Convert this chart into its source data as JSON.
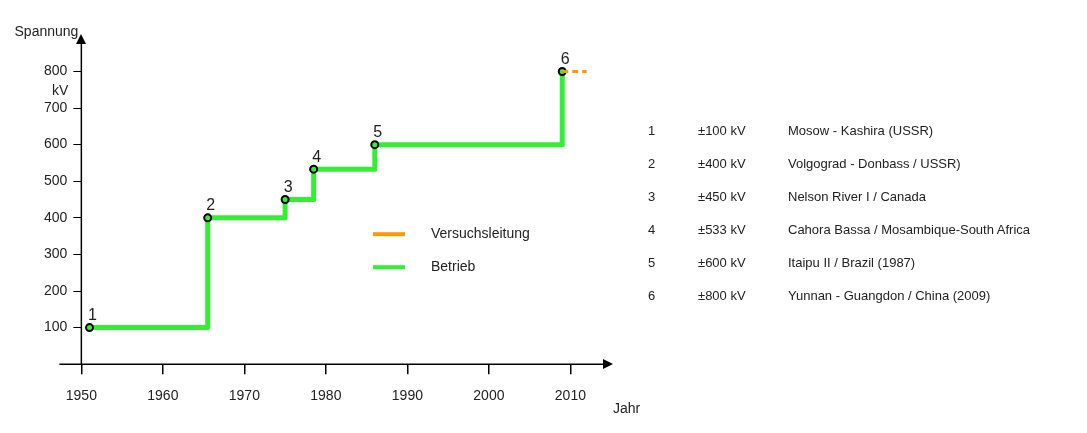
{
  "chart_data": {
    "type": "step",
    "xlabel": "Jahr",
    "ylabel": "Spannung",
    "xlim": [
      1950,
      2014
    ],
    "xticks": [
      1950,
      1960,
      1970,
      1980,
      1990,
      2000,
      2010
    ],
    "ylim": [
      0,
      875
    ],
    "yticks": [
      100,
      200,
      300,
      400,
      500,
      600,
      700,
      800
    ],
    "grid": false,
    "legend": "bottom right",
    "marker": "circle",
    "series": [
      {
        "name": "Versuchsleitung",
        "color": "#ff9900",
        "line_style": "dashed",
        "marker": "none",
        "x": [
          2009,
          2012
        ],
        "values": [
          800,
          800
        ]
      },
      {
        "name": "Betrieb",
        "color": "#33ee33",
        "line_style": "solid",
        "x": [
          1951,
          1965.5,
          1975,
          1978.5,
          1986,
          2009
        ],
        "values": [
          100,
          400,
          450,
          533,
          600,
          800
        ]
      }
    ],
    "annotations": [
      "kV",
      {
        "text": "1",
        "x": 1951,
        "y": 100
      },
      {
        "text": "2",
        "x": 1965.5,
        "y": 400
      },
      {
        "text": "3",
        "x": 1975,
        "y": 450
      },
      {
        "text": "4",
        "x": 1978.5,
        "y": 533
      },
      {
        "text": "5",
        "x": 1986,
        "y": 600
      },
      {
        "text": "6",
        "x": 2009,
        "y": 800
      },
      "1\t±100 kV\tMosow - Kashira (USSR)",
      "2\t±400 kV\tVolgograd - Donbass / USSR)",
      "3\t±450 kV\tNelson River I / Canada",
      "4\t±533 kV\tCahora Bassa / Mosambique-South Africa",
      "5\t±600 kV\tItaipu II / Brazil (1987)",
      "6\t±800 kV\tYunnan - Guangdon / China (2009)"
    ]
  }
}
